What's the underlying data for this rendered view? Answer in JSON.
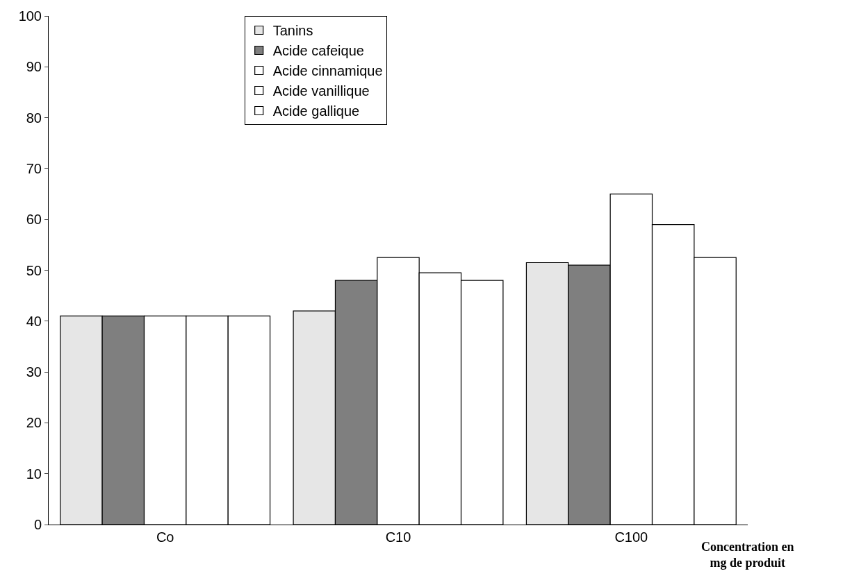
{
  "chart_data": {
    "type": "bar",
    "xlabel": "Concentration en mg de produit",
    "categories": [
      "Co",
      "C10",
      "C100"
    ],
    "series": [
      {
        "name": "Tanins",
        "color": "#e6e6e6",
        "values": [
          41,
          42,
          51.5
        ]
      },
      {
        "name": "Acide cafeique",
        "color": "#7f7f7f",
        "values": [
          41,
          48,
          51
        ]
      },
      {
        "name": "Acide cinnamique",
        "color": "#ffffff",
        "values": [
          41,
          52.5,
          65
        ]
      },
      {
        "name": "Acide vanillique",
        "color": "#ffffff",
        "values": [
          41,
          49.5,
          59
        ]
      },
      {
        "name": "Acide gallique",
        "color": "#ffffff",
        "values": [
          41,
          48,
          52.5
        ]
      }
    ],
    "ylim": [
      0,
      100
    ],
    "yticks": [
      0,
      10,
      20,
      30,
      40,
      50,
      60,
      70,
      80,
      90,
      100
    ],
    "legend": "top"
  }
}
